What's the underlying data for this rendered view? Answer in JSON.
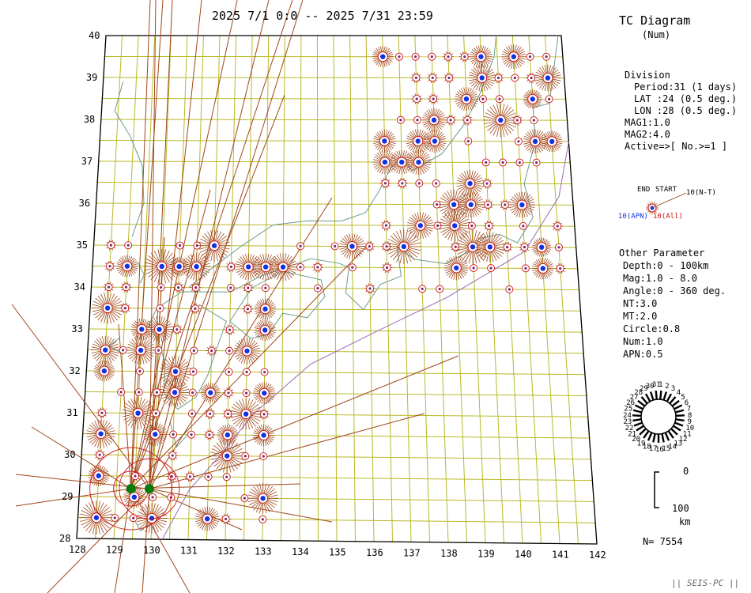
{
  "header": {
    "period": "2025 7/1 0:0 -- 2025 7/31 23:59"
  },
  "panel": {
    "title": "TC Diagram",
    "subtitle": "(Num)",
    "division": {
      "heading": "Division",
      "lines": [
        "Period:31 (1 days)",
        "LAT  :24 (0.5 deg.)",
        "LON  :28 (0.5 deg.)",
        "MAG1:1.0",
        "MAG2:4.0",
        "Active=>[ No.>=1 ]"
      ]
    },
    "legend": {
      "end": "END",
      "start": "START",
      "nt": "10(N-T)",
      "apn": "10(APN)",
      "all": "10(All)"
    },
    "other": {
      "heading": "Other Parameter",
      "lines": [
        "Depth:0 - 100km",
        "Mag:1.0 - 8.0",
        "Angle:0 - 360 deg.",
        "NT:3.0",
        "MT:2.0",
        "Circle:0.8",
        "Num:1.0",
        "APN:0.5"
      ]
    },
    "clock_days": [
      "1",
      "2",
      "3",
      "4",
      "5",
      "6",
      "7",
      "8",
      "9",
      "10",
      "11",
      "12",
      "13",
      "14",
      "15",
      "16",
      "17",
      "18",
      "19",
      "20",
      "21",
      "22",
      "23",
      "24",
      "25",
      "26",
      "27",
      "28",
      "29",
      "30",
      "31"
    ],
    "depth_scale": {
      "top": "0",
      "bottom": "100",
      "unit": "km"
    },
    "count": "N= 7554",
    "footer": "|| SEIS-PC ||"
  },
  "map": {
    "lat_labels": [
      "40",
      "39",
      "38",
      "37",
      "36",
      "35",
      "34",
      "33",
      "32",
      "31",
      "30",
      "29",
      "28"
    ],
    "lon_labels": [
      "128",
      "129",
      "130",
      "131",
      "132",
      "133",
      "134",
      "135",
      "136",
      "137",
      "138",
      "139",
      "140",
      "141",
      "142"
    ],
    "colors": {
      "grid": "#b9b92a",
      "coast": "#6c9c8c",
      "ray": "#a0481a",
      "ring": "#cc1111",
      "apn": "#1133dd",
      "nt": "#0a7a0a"
    }
  }
}
